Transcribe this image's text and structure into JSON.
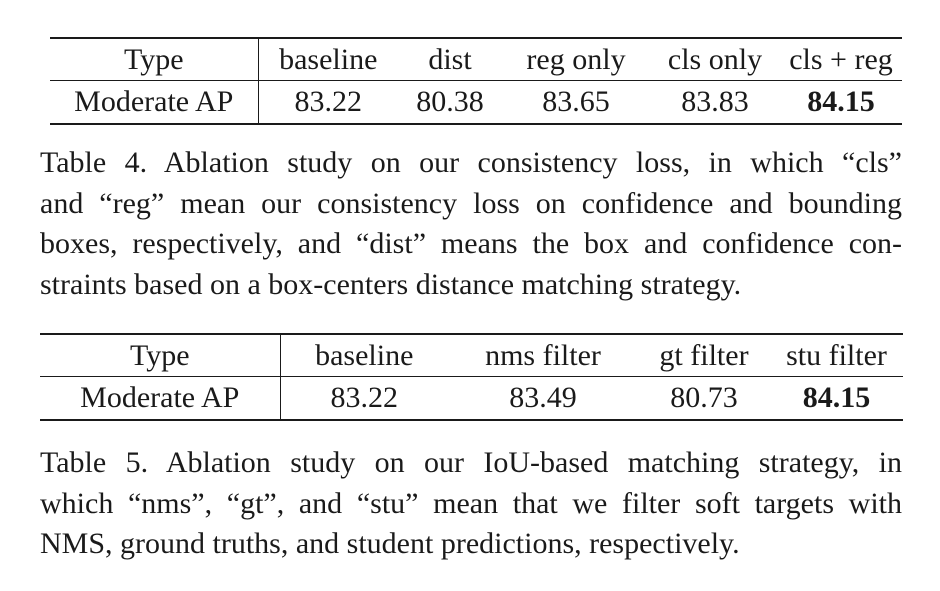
{
  "table4": {
    "headers": [
      "Type",
      "baseline",
      "dist",
      "reg only",
      "cls only",
      "cls + reg"
    ],
    "row_label": "Moderate AP",
    "values": [
      "83.22",
      "80.38",
      "83.65",
      "83.83",
      "84.15"
    ],
    "bold_index": 4
  },
  "caption4": {
    "lines": [
      "Table 4. Ablation study on our consistency loss, in which “cls”",
      "and “reg” mean our consistency loss on confidence and bounding",
      "boxes, respectively, and “dist” means the box and confidence con-",
      "straints based on a box-centers distance matching strategy."
    ]
  },
  "table5": {
    "headers": [
      "Type",
      "baseline",
      "nms filter",
      "gt filter",
      "stu filter"
    ],
    "row_label": "Moderate AP",
    "values": [
      "83.22",
      "83.49",
      "80.73",
      "84.15"
    ],
    "bold_index": 3
  },
  "caption5": {
    "lines": [
      "Table 5. Ablation study on our IoU-based matching strategy, in",
      "which “nms”, “gt”, and “stu” mean that we filter soft targets with",
      "NMS, ground truths, and student predictions, respectively."
    ]
  }
}
